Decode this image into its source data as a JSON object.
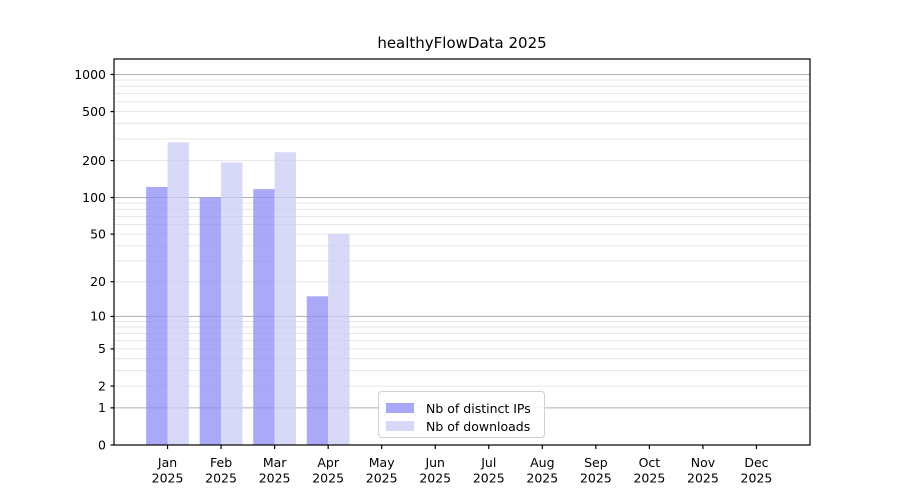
{
  "title": "healthyFlowData 2025",
  "chart_data": {
    "type": "bar",
    "title": "healthyFlowData 2025",
    "categories": [
      "Jan 2025",
      "Feb 2025",
      "Mar 2025",
      "Apr 2025",
      "May 2025",
      "Jun 2025",
      "Jul 2025",
      "Aug 2025",
      "Sep 2025",
      "Oct 2025",
      "Nov 2025",
      "Dec 2025"
    ],
    "series": [
      {
        "name": "Nb of distinct IPs",
        "color": "#8c8cf4",
        "opacity": 0.75,
        "values": [
          122,
          100,
          117,
          15,
          0,
          0,
          0,
          0,
          0,
          0,
          0,
          0
        ]
      },
      {
        "name": "Nb of downloads",
        "color": "#cbcbf7",
        "opacity": 0.75,
        "values": [
          281,
          193,
          234,
          50,
          0,
          0,
          0,
          0,
          0,
          0,
          0,
          0
        ]
      }
    ],
    "xlabel": "",
    "ylabel": "",
    "y_axis": {
      "scale": "log1p",
      "tick_labels": [
        0,
        1,
        2,
        5,
        10,
        20,
        50,
        100,
        200,
        500,
        1000
      ],
      "major_gridline_values": [
        1,
        10,
        100,
        1000
      ],
      "ylim": [
        0,
        1335
      ]
    },
    "grid": {
      "enabled": true,
      "major_color": "#b0b0b0",
      "minor_color": "#e6e6e6"
    },
    "legend": {
      "position": "lower center",
      "items": [
        "Nb of distinct IPs",
        "Nb of downloads"
      ]
    },
    "colors": {
      "spine": "#000000",
      "tick_text": "#000000",
      "background": "#ffffff"
    }
  }
}
